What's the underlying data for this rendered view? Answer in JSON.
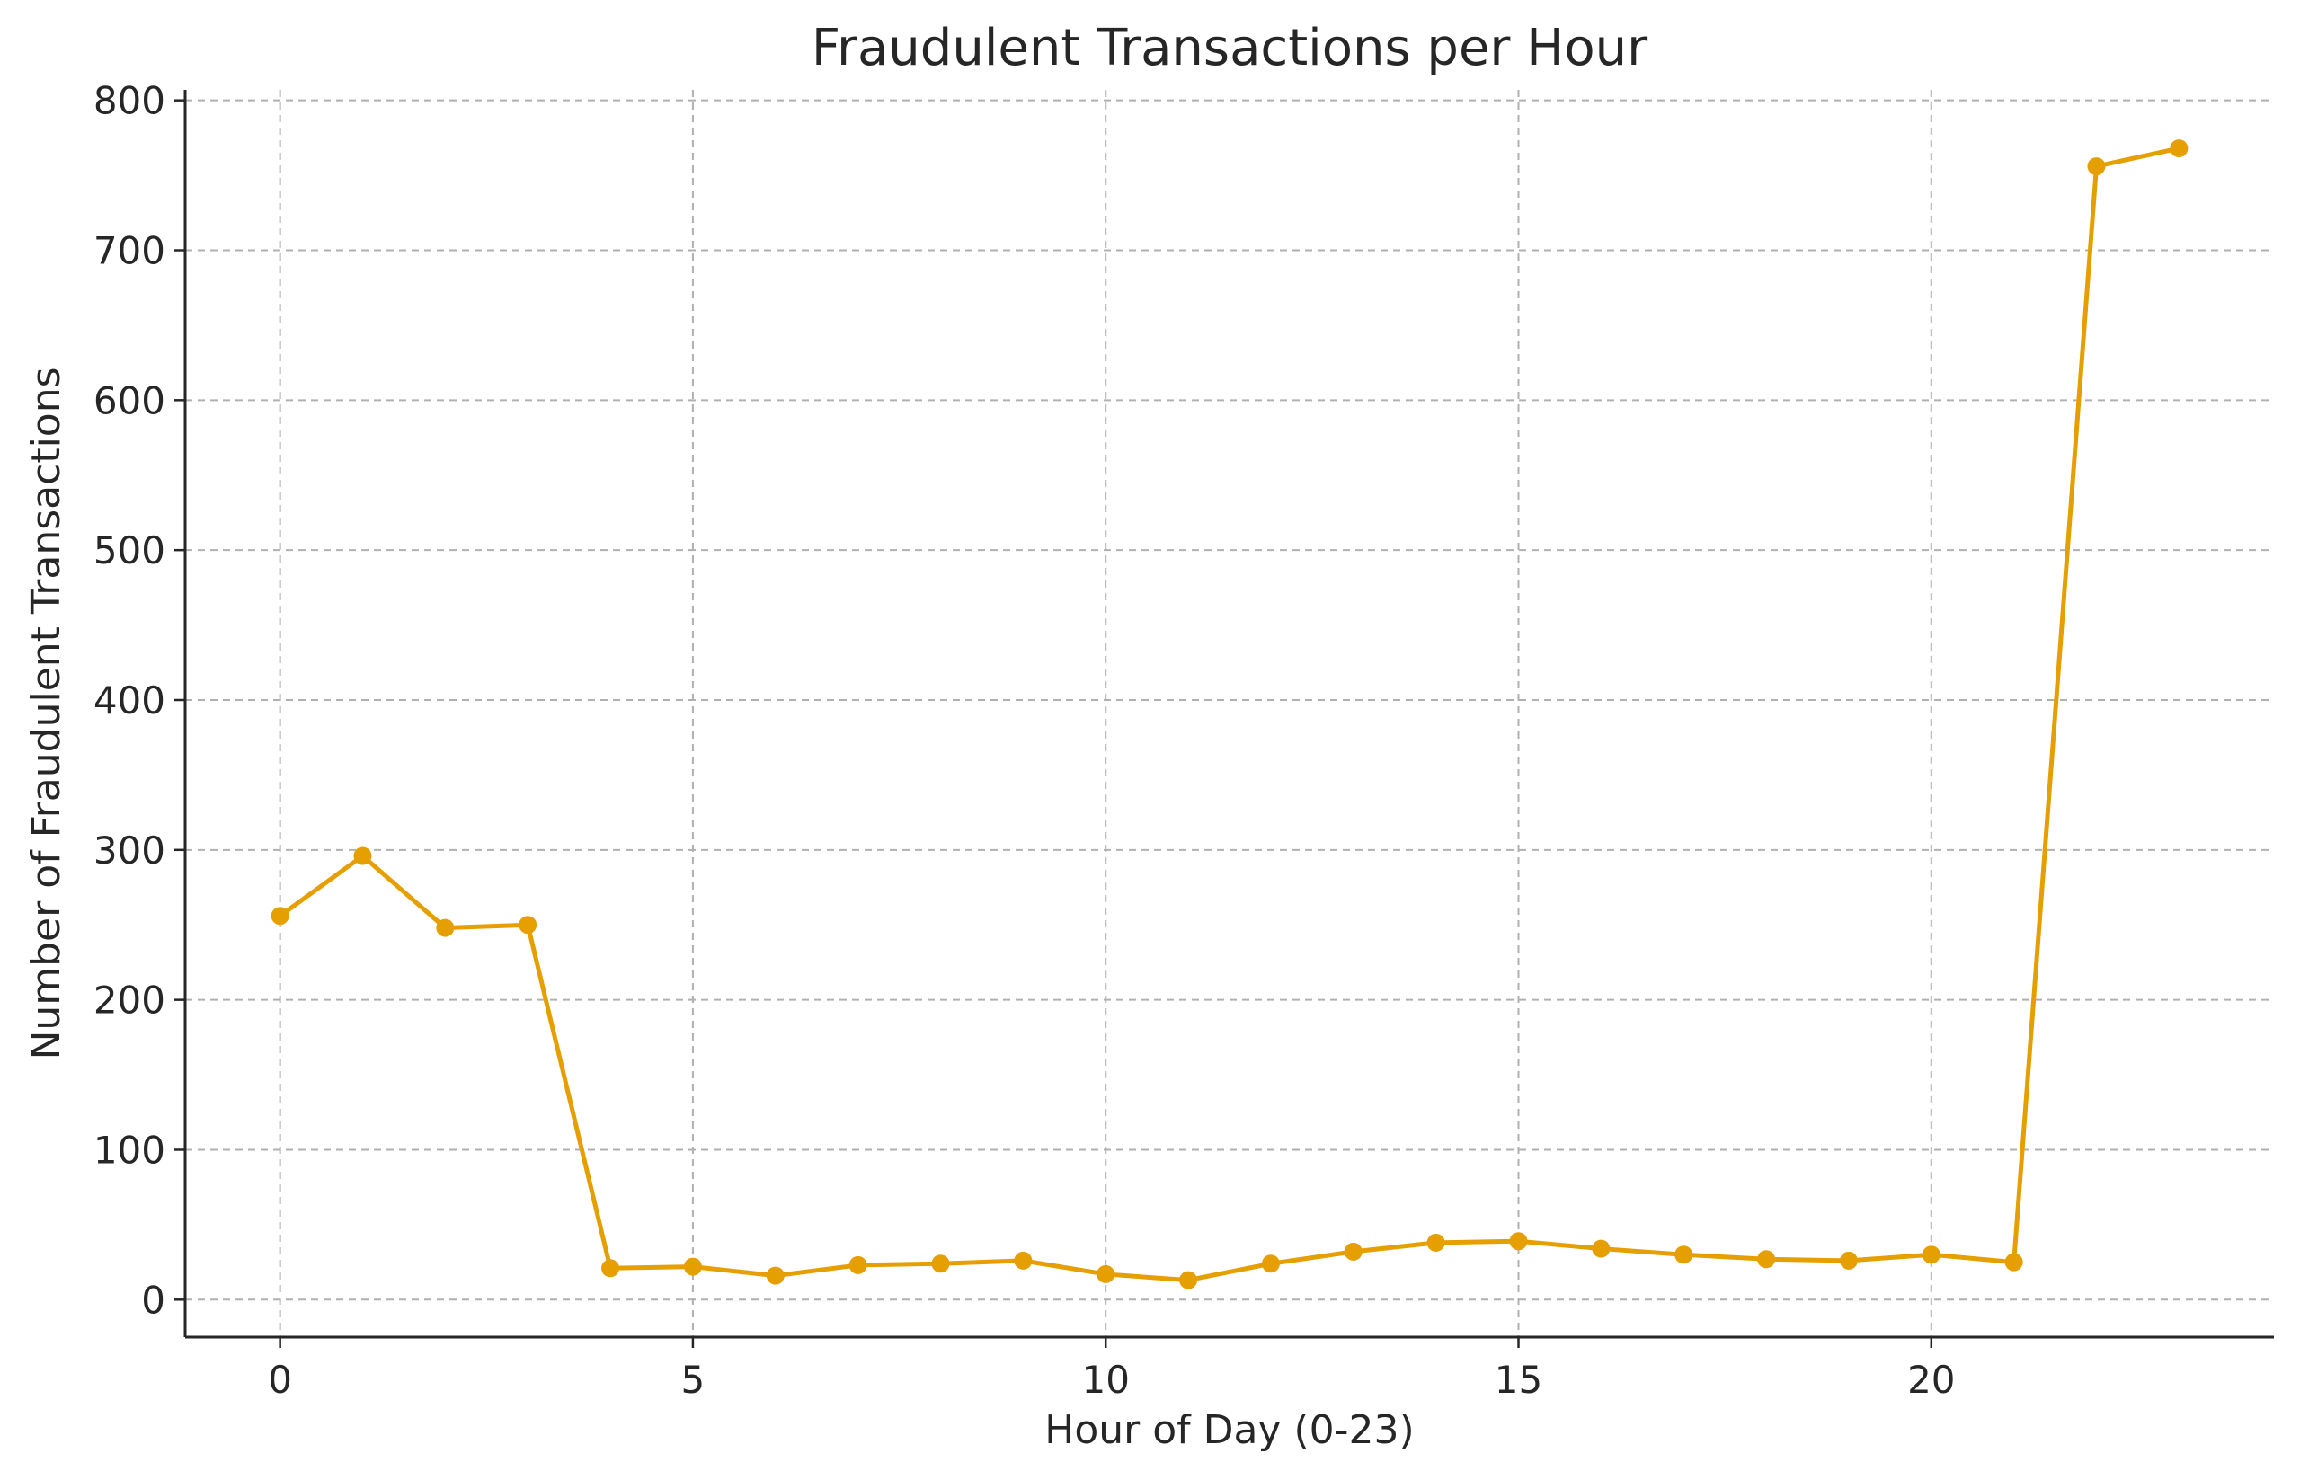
{
  "chart_data": {
    "type": "line",
    "title": "Fraudulent Transactions per Hour",
    "xlabel": "Hour of Day (0-23)",
    "ylabel": "Number of Fraudulent Transactions",
    "x": [
      0,
      1,
      2,
      3,
      4,
      5,
      6,
      7,
      8,
      9,
      10,
      11,
      12,
      13,
      14,
      15,
      16,
      17,
      18,
      19,
      20,
      21,
      22,
      23
    ],
    "series": [
      {
        "values": [
          256,
          296,
          248,
          250,
          21,
          22,
          16,
          23,
          24,
          26,
          17,
          13,
          24,
          32,
          38,
          39,
          34,
          30,
          27,
          26,
          30,
          25,
          756,
          768
        ],
        "color": "#e69f00",
        "marker": "circle"
      }
    ],
    "xlim": [
      -1.15,
      24.15
    ],
    "ylim": [
      -25,
      807
    ],
    "xticks": [
      0,
      5,
      10,
      15,
      20
    ],
    "yticks": [
      0,
      100,
      200,
      300,
      400,
      500,
      600,
      700,
      800
    ],
    "grid": true,
    "legend": "none"
  }
}
